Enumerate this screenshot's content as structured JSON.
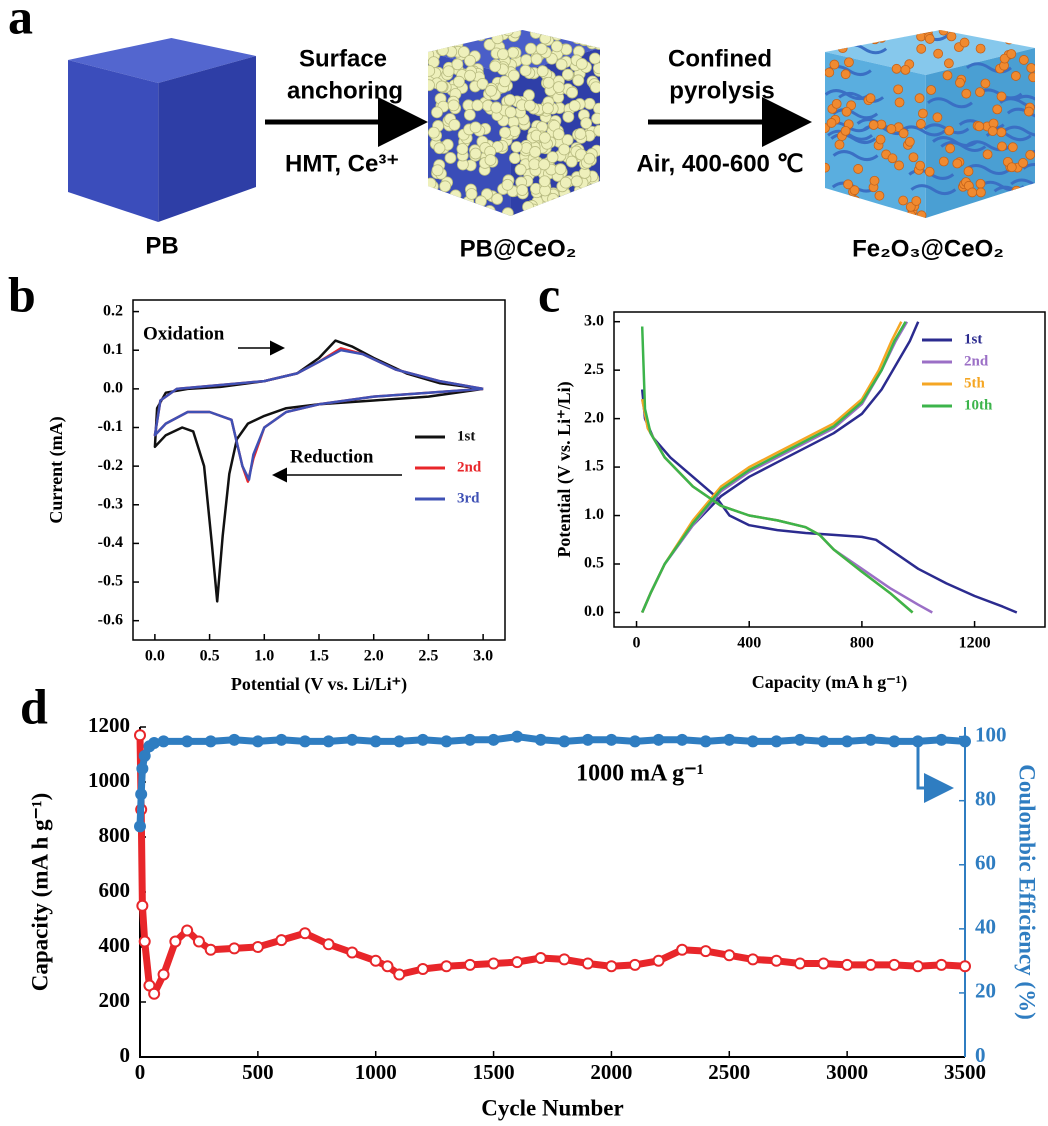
{
  "panel_labels": [
    "a",
    "b",
    "c",
    "d"
  ],
  "schematic": {
    "steps": [
      {
        "above": [
          "Surface",
          "anchoring"
        ],
        "below": "HMT, Ce³⁺"
      },
      {
        "above": [
          "Confined",
          "pyrolysis"
        ],
        "below": "Air, 400-600 ℃"
      }
    ],
    "materials": [
      "PB",
      "PB@CeO₂",
      "Fe₂O₃@CeO₂"
    ]
  },
  "chart_data": [
    {
      "type": "line",
      "xlabel": "Potential (V vs. Li/Li⁺)",
      "ylabel": "Current (mA)",
      "xlim": [
        -0.2,
        3.2
      ],
      "ylim": [
        -0.65,
        0.23
      ],
      "xticks": [
        {
          "value": 0,
          "label": "0.0"
        },
        0.5,
        {
          "value": 1,
          "label": "1.0"
        },
        1.5,
        {
          "value": 2,
          "label": "2.0"
        },
        2.5,
        {
          "value": 3,
          "label": "3.0"
        }
      ],
      "yticks": [
        0.2,
        0.1,
        {
          "value": 0,
          "label": "0.0"
        },
        -0.1,
        -0.2,
        -0.3,
        -0.4,
        -0.5,
        -0.6
      ],
      "grid": false,
      "legend": "right",
      "annotations": [
        "Oxidation",
        "Reduction"
      ],
      "series": [
        {
          "name": "1st",
          "color": "#111111",
          "x": [
            3.0,
            2.5,
            2.0,
            1.5,
            1.2,
            1.0,
            0.85,
            0.75,
            0.68,
            0.62,
            0.57,
            0.52,
            0.45,
            0.35,
            0.25,
            0.1,
            0.0,
            0.02,
            0.1,
            0.3,
            0.6,
            1.0,
            1.3,
            1.5,
            1.65,
            1.8,
            2.0,
            2.3,
            2.6,
            3.0
          ],
          "values": [
            0.0,
            -0.02,
            -0.03,
            -0.04,
            -0.05,
            -0.07,
            -0.09,
            -0.13,
            -0.22,
            -0.38,
            -0.55,
            -0.4,
            -0.2,
            -0.11,
            -0.1,
            -0.12,
            -0.15,
            -0.05,
            -0.01,
            0.0,
            0.005,
            0.02,
            0.04,
            0.08,
            0.125,
            0.11,
            0.08,
            0.04,
            0.015,
            0.0
          ]
        },
        {
          "name": "2nd",
          "color": "#e8262a",
          "x": [
            3.0,
            2.5,
            2.0,
            1.5,
            1.2,
            1.0,
            0.9,
            0.85,
            0.8,
            0.7,
            0.5,
            0.3,
            0.1,
            0.0,
            0.05,
            0.2,
            0.6,
            1.0,
            1.3,
            1.5,
            1.7,
            1.9,
            2.2,
            2.6,
            3.0
          ],
          "values": [
            0.0,
            -0.01,
            -0.02,
            -0.04,
            -0.06,
            -0.1,
            -0.18,
            -0.24,
            -0.2,
            -0.08,
            -0.06,
            -0.06,
            -0.09,
            -0.12,
            -0.03,
            0.0,
            0.01,
            0.02,
            0.04,
            0.07,
            0.105,
            0.09,
            0.05,
            0.02,
            0.0
          ]
        },
        {
          "name": "3rd",
          "color": "#3f51b5",
          "x": [
            3.0,
            2.5,
            2.0,
            1.5,
            1.2,
            1.0,
            0.9,
            0.86,
            0.8,
            0.7,
            0.5,
            0.3,
            0.1,
            0.0,
            0.05,
            0.2,
            0.6,
            1.0,
            1.3,
            1.5,
            1.7,
            1.9,
            2.2,
            2.6,
            3.0
          ],
          "values": [
            0.0,
            -0.01,
            -0.02,
            -0.04,
            -0.06,
            -0.1,
            -0.17,
            -0.235,
            -0.2,
            -0.08,
            -0.06,
            -0.06,
            -0.09,
            -0.12,
            -0.03,
            0.0,
            0.01,
            0.02,
            0.04,
            0.07,
            0.1,
            0.09,
            0.05,
            0.02,
            0.0
          ]
        }
      ]
    },
    {
      "type": "line",
      "xlabel": "Capacity (mA h g⁻¹)",
      "ylabel": "Potential (V vs. Li⁺/Li)",
      "xlim": [
        -80,
        1450
      ],
      "ylim": [
        -0.15,
        3.1
      ],
      "xticks": [
        0,
        400,
        800,
        1200
      ],
      "yticks": [
        {
          "value": 0,
          "label": "0.0"
        },
        0.5,
        {
          "value": 1,
          "label": "1.0"
        },
        1.5,
        {
          "value": 2,
          "label": "2.0"
        },
        2.5,
        {
          "value": 3,
          "label": "3.0"
        }
      ],
      "grid": false,
      "legend": "upper right",
      "series": [
        {
          "name": "1st",
          "color": "#2b2b8f",
          "x": [
            20,
            30,
            60,
            120,
            200,
            280,
            330,
            400,
            500,
            600,
            700,
            800,
            850,
            900,
            1000,
            1100,
            1200,
            1300,
            1350,
            null,
            20,
            50,
            100,
            200,
            300,
            400,
            500,
            600,
            700,
            800,
            870,
            930,
            970,
            1000
          ],
          "values": [
            2.3,
            2.0,
            1.8,
            1.6,
            1.4,
            1.2,
            1.0,
            0.9,
            0.85,
            0.82,
            0.8,
            0.78,
            0.75,
            0.65,
            0.45,
            0.3,
            0.17,
            0.06,
            0.0,
            null,
            0.0,
            0.2,
            0.5,
            0.9,
            1.2,
            1.4,
            1.55,
            1.7,
            1.85,
            2.05,
            2.3,
            2.6,
            2.8,
            3.0
          ]
        },
        {
          "name": "2nd",
          "color": "#9b6fc6",
          "x": [
            20,
            40,
            100,
            200,
            300,
            400,
            500,
            600,
            650,
            700,
            800,
            900,
            1000,
            1050,
            null,
            20,
            50,
            100,
            200,
            300,
            400,
            500,
            600,
            700,
            800,
            870,
            920,
            960
          ],
          "values": [
            2.2,
            1.9,
            1.6,
            1.3,
            1.1,
            1.0,
            0.95,
            0.88,
            0.8,
            0.65,
            0.45,
            0.25,
            0.08,
            0.0,
            null,
            0.0,
            0.2,
            0.5,
            0.9,
            1.25,
            1.45,
            1.6,
            1.75,
            1.9,
            2.15,
            2.5,
            2.8,
            3.0
          ]
        },
        {
          "name": "5th",
          "color": "#f5a623",
          "x": [
            20,
            40,
            100,
            200,
            300,
            400,
            500,
            600,
            650,
            700,
            800,
            900,
            980,
            null,
            20,
            50,
            100,
            200,
            300,
            400,
            500,
            600,
            700,
            800,
            860,
            905,
            940
          ],
          "values": [
            2.2,
            1.9,
            1.6,
            1.3,
            1.1,
            1.0,
            0.95,
            0.88,
            0.8,
            0.65,
            0.42,
            0.2,
            0.0,
            null,
            0.0,
            0.2,
            0.5,
            0.95,
            1.3,
            1.5,
            1.65,
            1.8,
            1.95,
            2.2,
            2.5,
            2.8,
            3.0
          ]
        },
        {
          "name": "10th",
          "color": "#3cb44b",
          "x": [
            20,
            30,
            50,
            100,
            200,
            300,
            400,
            500,
            600,
            650,
            700,
            800,
            900,
            980,
            null,
            20,
            50,
            100,
            200,
            300,
            400,
            500,
            600,
            700,
            800,
            870,
            915,
            955
          ],
          "values": [
            2.95,
            2.1,
            1.85,
            1.6,
            1.3,
            1.1,
            1.0,
            0.95,
            0.88,
            0.8,
            0.65,
            0.42,
            0.2,
            0.0,
            null,
            0.0,
            0.2,
            0.5,
            0.92,
            1.27,
            1.47,
            1.62,
            1.77,
            1.92,
            2.17,
            2.5,
            2.8,
            3.0
          ]
        }
      ]
    },
    {
      "type": "line",
      "xlabel": "Cycle Number",
      "ylabel": "Capacity (mA h g⁻¹)",
      "y2label": "Coulombic Efficiency (%)",
      "xlim": [
        0,
        3500
      ],
      "ylim": [
        0,
        1200
      ],
      "y2lim": [
        0,
        103
      ],
      "xticks": [
        0,
        500,
        1000,
        1500,
        2000,
        2500,
        3000,
        3500
      ],
      "yticks": [
        0,
        200,
        400,
        600,
        800,
        1000,
        1200
      ],
      "y2ticks": [
        0,
        20,
        40,
        60,
        80,
        100
      ],
      "grid": false,
      "markers": true,
      "annotations": [
        "1000 mA g⁻¹"
      ],
      "series": [
        {
          "color": "#e8262a",
          "x": [
            0,
            5,
            10,
            20,
            40,
            60,
            100,
            150,
            200,
            250,
            300,
            400,
            500,
            600,
            700,
            800,
            900,
            1000,
            1050,
            1100,
            1200,
            1300,
            1400,
            1500,
            1600,
            1700,
            1800,
            1900,
            2000,
            2100,
            2200,
            2300,
            2400,
            2500,
            2600,
            2700,
            2800,
            2900,
            3000,
            3100,
            3200,
            3300,
            3400,
            3500
          ],
          "values": [
            1170,
            900,
            550,
            420,
            260,
            230,
            300,
            420,
            460,
            420,
            390,
            395,
            400,
            425,
            450,
            410,
            380,
            350,
            330,
            300,
            320,
            330,
            335,
            340,
            345,
            360,
            355,
            340,
            330,
            335,
            350,
            390,
            385,
            370,
            355,
            350,
            340,
            340,
            335,
            335,
            335,
            330,
            335,
            330
          ]
        },
        {
          "color": "#2f7dc1",
          "axis": "y2",
          "x": [
            0,
            5,
            10,
            20,
            40,
            60,
            100,
            200,
            300,
            400,
            500,
            600,
            700,
            800,
            900,
            1000,
            1100,
            1200,
            1300,
            1400,
            1500,
            1600,
            1700,
            1800,
            1900,
            2000,
            2100,
            2200,
            2300,
            2400,
            2500,
            2600,
            2700,
            2800,
            2900,
            3000,
            3100,
            3200,
            3300,
            3400,
            3500
          ],
          "values": [
            72,
            82,
            90,
            94,
            97,
            98,
            98.5,
            98.5,
            98.5,
            99,
            98.5,
            99,
            98.5,
            98.5,
            99,
            98.5,
            98.5,
            99,
            98.5,
            99,
            99,
            100,
            99,
            98.5,
            99,
            99,
            98.5,
            99,
            99,
            98.5,
            99,
            98.5,
            98.5,
            99,
            98.5,
            98.5,
            99,
            98.5,
            98.5,
            99,
            98.5
          ]
        }
      ]
    }
  ]
}
